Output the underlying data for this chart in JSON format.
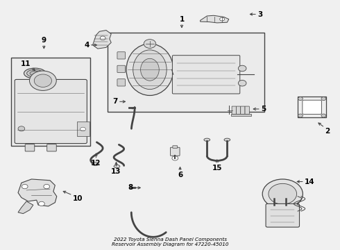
{
  "bg_color": "#f0f0f0",
  "line_color": "#444444",
  "text_color": "#000000",
  "fig_width": 4.9,
  "fig_height": 3.6,
  "dpi": 100,
  "title_line1": "2022 Toyota Sienna Dash Panel Components",
  "title_line2": "Reservoir Assembly Diagram for 47220-45010",
  "label_fontsize": 7.5,
  "part_labels": {
    "1": [
      0.535,
      0.885,
      0.535,
      0.915,
      "center",
      "bottom"
    ],
    "2": [
      0.935,
      0.515,
      0.96,
      0.49,
      "left",
      "top"
    ],
    "3": [
      0.73,
      0.95,
      0.76,
      0.95,
      "left",
      "center"
    ],
    "4": [
      0.29,
      0.825,
      0.26,
      0.825,
      "right",
      "center"
    ],
    "5": [
      0.74,
      0.565,
      0.77,
      0.565,
      "left",
      "center"
    ],
    "6": [
      0.53,
      0.34,
      0.53,
      0.31,
      "center",
      "top"
    ],
    "7": [
      0.375,
      0.595,
      0.345,
      0.595,
      "right",
      "center"
    ],
    "8": [
      0.42,
      0.245,
      0.39,
      0.245,
      "right",
      "center"
    ],
    "9": [
      0.125,
      0.8,
      0.125,
      0.83,
      "center",
      "bottom"
    ],
    "10": [
      0.175,
      0.235,
      0.21,
      0.215,
      "left",
      "top"
    ],
    "11": [
      0.105,
      0.715,
      0.085,
      0.735,
      "right",
      "bottom"
    ],
    "12": [
      0.28,
      0.395,
      0.28,
      0.36,
      "center",
      "top"
    ],
    "13": [
      0.34,
      0.36,
      0.34,
      0.325,
      "center",
      "top"
    ],
    "14": [
      0.87,
      0.27,
      0.9,
      0.27,
      "left",
      "center"
    ],
    "15": [
      0.64,
      0.37,
      0.64,
      0.34,
      "center",
      "top"
    ]
  }
}
